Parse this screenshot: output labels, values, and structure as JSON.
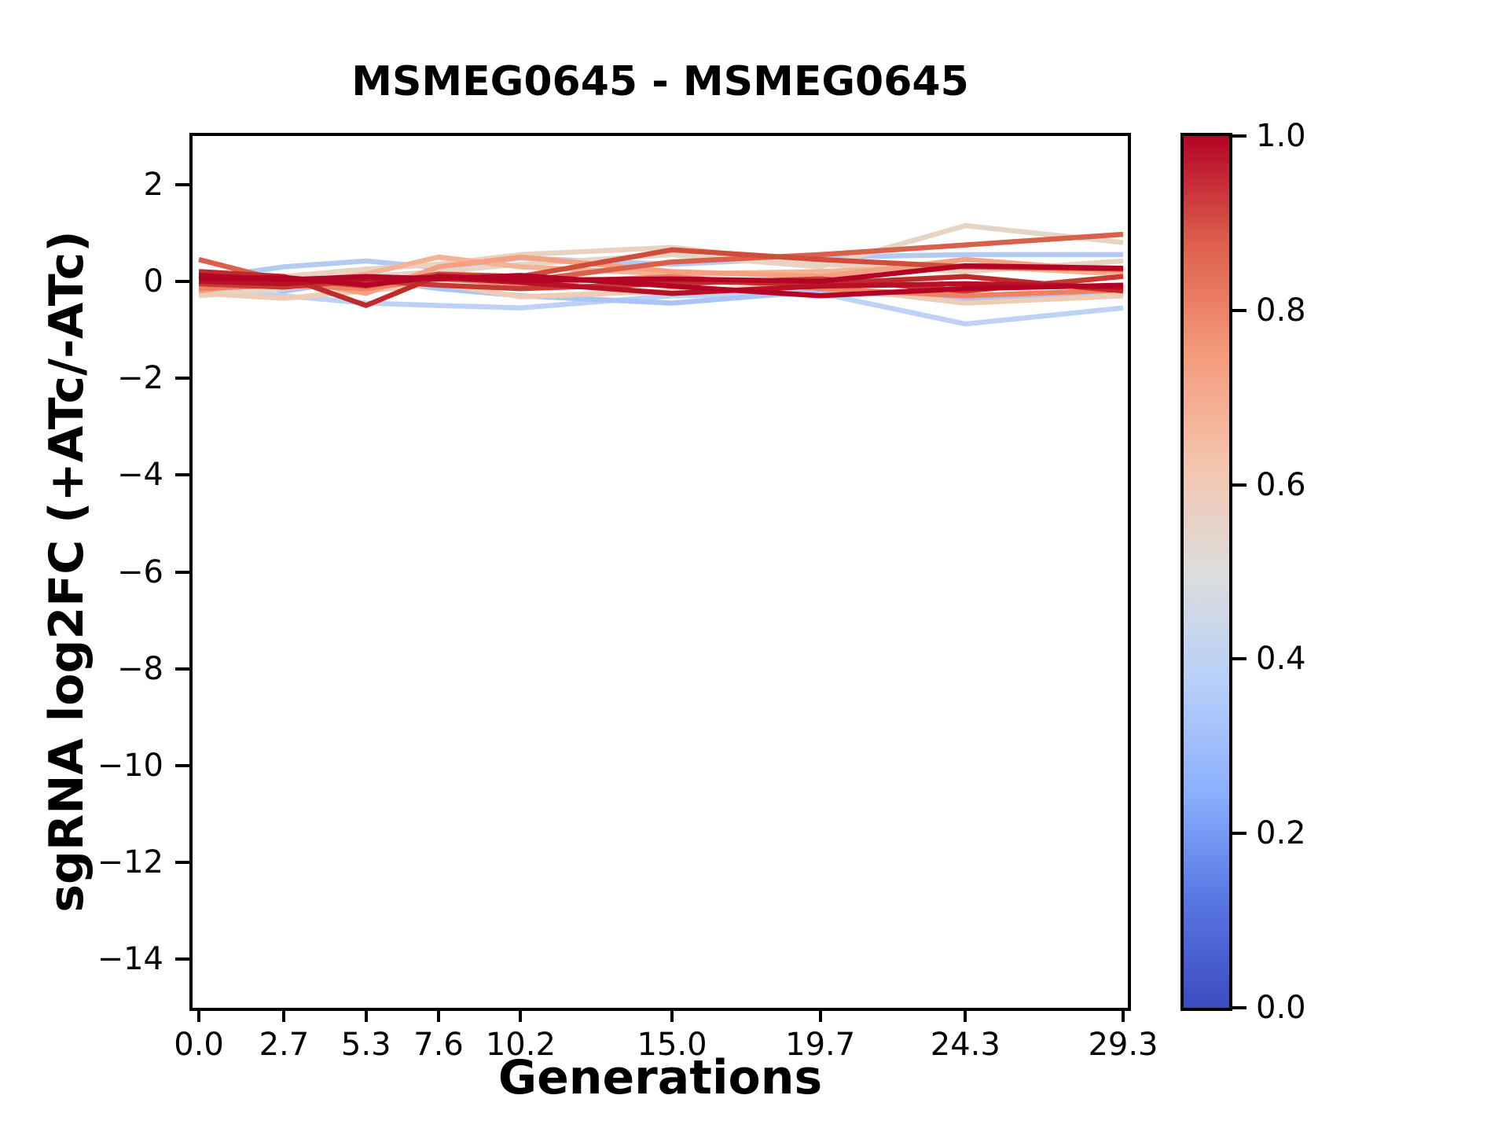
{
  "figure": {
    "title": "MSMEG0645 - MSMEG0645"
  },
  "chart_data": {
    "type": "line",
    "title": "MSMEG0645 - MSMEG0645",
    "xlabel": "Generations",
    "ylabel": "sgRNA log2FC (+ATc/-ATc)",
    "xlim": [
      -0.2,
      29.45
    ],
    "ylim": [
      -15,
      3
    ],
    "grid": false,
    "legend": "none",
    "x": [
      0.0,
      2.7,
      5.3,
      7.6,
      10.2,
      15.0,
      19.7,
      24.3,
      29.3
    ],
    "x_ticks": {
      "values": [
        0.0,
        2.7,
        5.3,
        7.6,
        10.2,
        15.0,
        19.7,
        24.3,
        29.3
      ],
      "labels": [
        "0.0",
        "2.7",
        "5.3",
        "7.6",
        "10.2",
        "15.0",
        "19.7",
        "24.3",
        "29.3"
      ]
    },
    "y_ticks": {
      "values": [
        2,
        0,
        -2,
        -4,
        -6,
        -8,
        -10,
        -12,
        -14
      ],
      "labels": [
        "2",
        "0",
        "−2",
        "−4",
        "−6",
        "−8",
        "−10",
        "−12",
        "−14"
      ]
    },
    "series": [
      {
        "color_value": 0.42,
        "color": "#bdd2f4",
        "values": [
          -0.15,
          -0.3,
          -0.45,
          -0.5,
          -0.55,
          -0.3,
          -0.25,
          -0.88,
          -0.55
        ]
      },
      {
        "color_value": 0.38,
        "color": "#b3cbf2",
        "values": [
          0.05,
          0.3,
          0.42,
          0.28,
          0.48,
          0.35,
          0.5,
          0.55,
          0.55
        ]
      },
      {
        "color_value": 0.35,
        "color": "#abc4f7",
        "values": [
          0.1,
          -0.2,
          0.05,
          -0.15,
          -0.3,
          -0.45,
          -0.2,
          -0.35,
          -0.3
        ]
      },
      {
        "color_value": 0.55,
        "color": "#e6d4c5",
        "values": [
          -0.3,
          -0.15,
          0.1,
          0.2,
          0.35,
          0.55,
          0.3,
          1.15,
          0.8
        ]
      },
      {
        "color_value": 0.6,
        "color": "#efccb4",
        "values": [
          -0.25,
          -0.35,
          -0.2,
          -0.05,
          -0.32,
          -0.2,
          -0.1,
          -0.45,
          -0.3
        ]
      },
      {
        "color_value": 0.58,
        "color": "#ead2c0",
        "values": [
          0.0,
          0.1,
          0.25,
          0.35,
          0.55,
          0.7,
          0.35,
          0.2,
          0.42
        ]
      },
      {
        "color_value": 0.68,
        "color": "#f6b294",
        "values": [
          -0.1,
          -0.05,
          0.15,
          0.5,
          0.3,
          0.15,
          0.2,
          0.32,
          0.15
        ]
      },
      {
        "color_value": 0.72,
        "color": "#f5a181",
        "values": [
          -0.2,
          0.05,
          -0.25,
          0.3,
          0.5,
          0.2,
          0.1,
          0.45,
          0.2
        ]
      },
      {
        "color_value": 0.8,
        "color": "#ec8262",
        "values": [
          -0.15,
          -0.08,
          -0.15,
          0.05,
          -0.05,
          0.1,
          -0.15,
          -0.3,
          -0.18
        ]
      },
      {
        "color_value": 0.87,
        "color": "#d9604b",
        "values": [
          0.45,
          0.0,
          -0.05,
          0.05,
          0.0,
          0.4,
          0.55,
          0.75,
          0.97
        ]
      },
      {
        "color_value": 0.9,
        "color": "#d04c3b",
        "values": [
          0.1,
          0.05,
          -0.1,
          0.15,
          0.1,
          0.65,
          0.45,
          0.3,
          0.25
        ]
      },
      {
        "color_value": 0.93,
        "color": "#c53a33",
        "values": [
          -0.05,
          -0.12,
          0.02,
          -0.08,
          -0.15,
          -0.05,
          0.05,
          -0.2,
          0.1
        ]
      },
      {
        "color_value": 0.95,
        "color": "#bf2a2c",
        "values": [
          0.2,
          0.1,
          -0.5,
          0.12,
          0.05,
          0.0,
          -0.05,
          0.1,
          -0.2
        ]
      },
      {
        "color_value": 0.98,
        "color": "#b81127",
        "values": [
          0.0,
          -0.05,
          0.05,
          0.08,
          -0.02,
          -0.25,
          -0.1,
          -0.05,
          -0.12
        ]
      },
      {
        "color_value": 1.0,
        "color": "#b40426",
        "values": [
          0.12,
          0.03,
          0.1,
          0.05,
          0.12,
          -0.1,
          -0.3,
          -0.15,
          -0.08
        ]
      },
      {
        "color_value": 1.0,
        "color": "#b40426",
        "values": [
          0.05,
          0.08,
          -0.08,
          0.1,
          0.02,
          0.05,
          0.0,
          0.32,
          0.27
        ]
      }
    ],
    "colorbar": {
      "orientation": "vertical",
      "colormap": "coolwarm",
      "range": [
        0.0,
        1.0
      ],
      "ticks": {
        "values": [
          0.0,
          0.2,
          0.4,
          0.6,
          0.8,
          1.0
        ],
        "labels": [
          "0.0",
          "0.2",
          "0.4",
          "0.6",
          "0.8",
          "1.0"
        ]
      },
      "gradient_stops": [
        "#3b4cc0",
        "#5977e3",
        "#8db0fe",
        "#b8d0f9",
        "#dddddd",
        "#f5c4ad",
        "#f49a7b",
        "#de614d",
        "#b40426"
      ]
    }
  }
}
